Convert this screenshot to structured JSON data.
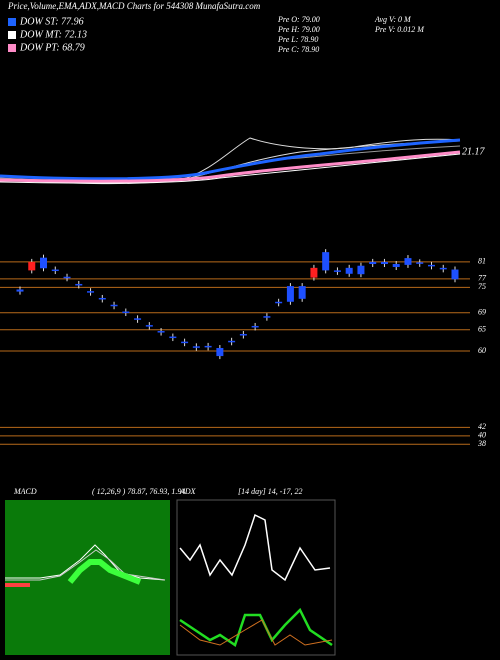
{
  "header": {
    "title": "Price,Volume,EMA,ADX,MACD Charts for 544308 MunafaSutra.com",
    "legend": [
      {
        "label": "DOW ST: 77.96",
        "color": "#1e64ff"
      },
      {
        "label": "DOW MT: 72.13",
        "color": "#ffffff"
      },
      {
        "label": "DOW PT: 68.79",
        "color": "#ff8cc8"
      }
    ],
    "stats": [
      "Pre O: 79.00",
      "Pre H: 79.00",
      "Pre L: 78.90",
      "Pre C: 78.90",
      "Avg V: 0 M",
      "Pre V: 0.012 M"
    ],
    "ema_label": "21.17"
  },
  "chart_data": {
    "type": "candlestick",
    "open": [
      74.5,
      79,
      82,
      79.2,
      77.5,
      75.8,
      74.1,
      72.5,
      70.9,
      69.3,
      67.7,
      66.1,
      64.7,
      63.4,
      62.2,
      61.1,
      61.2,
      60.7,
      62.4,
      64,
      65.9,
      68.2,
      71.6,
      75.3,
      75.3,
      77.3,
      83.3,
      79,
      79.6,
      80.1,
      81,
      81,
      80.5,
      81.9,
      80.9,
      80.3,
      79.6,
      79.2
    ],
    "close": [
      74,
      81,
      79.5,
      79,
      77.3,
      75.6,
      73.9,
      72.3,
      70.7,
      69.1,
      67.5,
      65.9,
      64.5,
      63.2,
      62,
      60.9,
      61,
      58.8,
      62.2,
      63.8,
      65.7,
      68,
      71.4,
      71.6,
      72.3,
      79.6,
      79,
      78.8,
      78.2,
      78.1,
      80.5,
      80.5,
      79.8,
      80.3,
      80.7,
      80.1,
      79.4,
      76.9
    ],
    "up_color": "#ff2020",
    "down_color": "#1e50ff",
    "ylim": [
      34.3,
      89.7
    ],
    "yticks": [
      81,
      77,
      75,
      69,
      65,
      60,
      42,
      40,
      38
    ],
    "grid": true,
    "grid_color": "#b86a1a"
  },
  "macd": {
    "label": "MACD",
    "values": "( 12,26,9 ) 78.87, 76.93, 1.94"
  },
  "adx": {
    "label": "ADX",
    "values": "[14 day] 14, -17, 22"
  }
}
